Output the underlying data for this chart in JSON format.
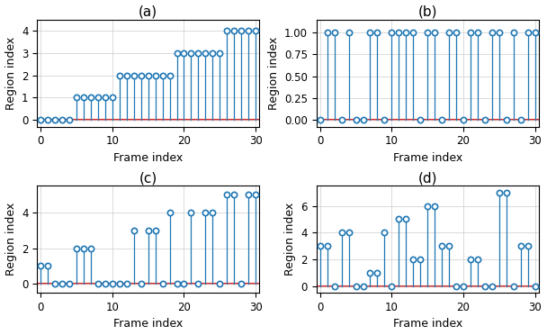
{
  "a_y": [
    0,
    0,
    0,
    0,
    0,
    1,
    1,
    1,
    1,
    1,
    1,
    2,
    2,
    2,
    2,
    2,
    2,
    2,
    2,
    3,
    3,
    3,
    3,
    3,
    3,
    3,
    4,
    4,
    4,
    4,
    4
  ],
  "b_y": [
    0,
    1,
    1,
    0,
    1,
    0,
    0,
    1,
    1,
    0,
    1,
    1,
    1,
    1,
    0,
    1,
    1,
    0,
    1,
    1,
    0,
    1,
    1,
    0,
    1,
    1,
    0,
    1,
    0,
    1,
    1
  ],
  "c_y": [
    1,
    1,
    0,
    0,
    0,
    2,
    2,
    2,
    0,
    0,
    0,
    0,
    0,
    3,
    0,
    3,
    3,
    0,
    4,
    0,
    0,
    4,
    0,
    4,
    4,
    0,
    5,
    5,
    0,
    5,
    5
  ],
  "d_y": [
    3,
    3,
    0,
    4,
    4,
    0,
    0,
    1,
    1,
    4,
    0,
    5,
    5,
    2,
    2,
    6,
    6,
    3,
    3,
    0,
    0,
    2,
    2,
    0,
    0,
    7,
    7,
    0,
    3,
    3,
    0
  ],
  "x": [
    0,
    1,
    2,
    3,
    4,
    5,
    6,
    7,
    8,
    9,
    10,
    11,
    12,
    13,
    14,
    15,
    16,
    17,
    18,
    19,
    20,
    21,
    22,
    23,
    24,
    25,
    26,
    27,
    28,
    29,
    30
  ],
  "baseline": 0,
  "line_color": "#d62728",
  "marker_color": "#1f77b4",
  "stem_color": "#1f77b4",
  "xlabel": "Frame index",
  "ylabel": "Region index",
  "title_a": "(a)",
  "title_b": "(b)",
  "title_c": "(c)",
  "title_d": "(d)",
  "xlim": [
    -0.5,
    30.5
  ],
  "a_ylim": [
    -0.3,
    4.5
  ],
  "b_ylim": [
    -0.08,
    1.15
  ],
  "c_ylim": [
    -0.5,
    5.5
  ],
  "d_ylim": [
    -0.5,
    7.5
  ],
  "title_fontsize": 11,
  "label_fontsize": 9,
  "tick_fontsize": 8.5
}
